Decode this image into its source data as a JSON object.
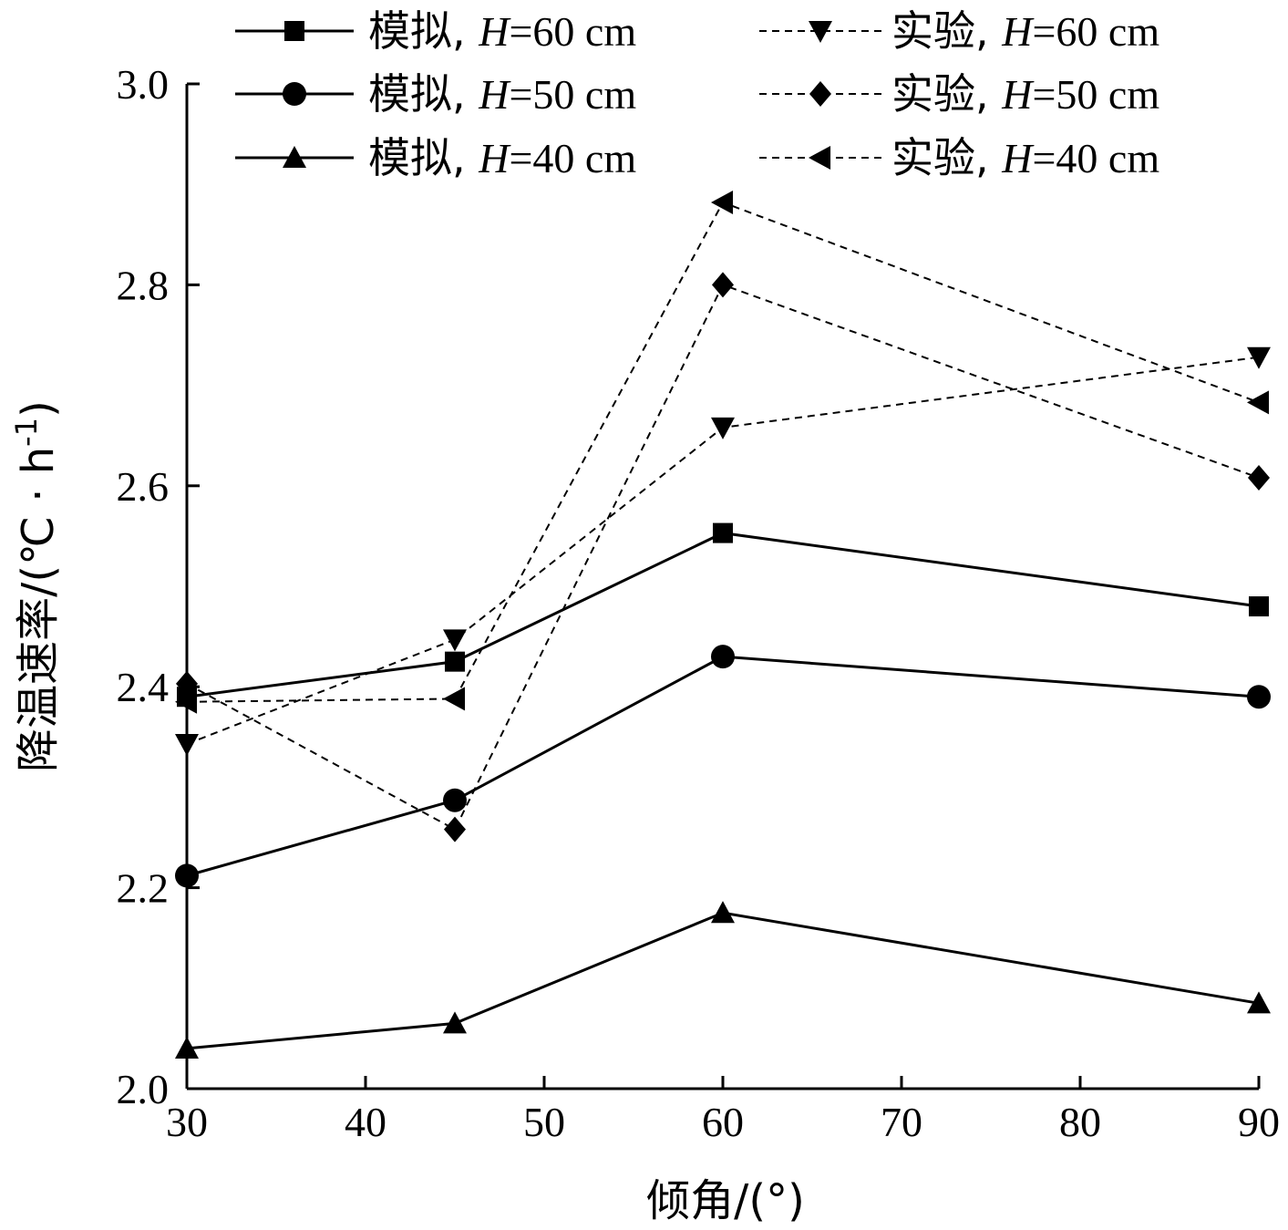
{
  "chart_data": {
    "type": "line",
    "title": "",
    "xlabel": "倾角/(°)",
    "ylabel": "降温速率/(℃ · h",
    "ylabel_sup": "-1",
    "ylabel_close": ")",
    "xlim": [
      30,
      90
    ],
    "ylim": [
      2.0,
      3.0
    ],
    "xticks": [
      30,
      40,
      50,
      60,
      70,
      80,
      90
    ],
    "yticks": [
      2.0,
      2.2,
      2.4,
      2.6,
      2.8,
      3.0
    ],
    "ytick_labels": [
      "2.0",
      "2.2",
      "2.4",
      "2.6",
      "2.8",
      "3.0"
    ],
    "x": [
      30,
      45,
      60,
      90
    ],
    "grid": false,
    "legend_position": "top",
    "series": [
      {
        "name": "模拟, H=60 cm",
        "prefix": "模拟, ",
        "var": "H",
        "suffix": "=60 cm",
        "style": "solid",
        "marker": "square",
        "values": [
          2.39,
          2.425,
          2.553,
          2.48
        ]
      },
      {
        "name": "模拟, H=50 cm",
        "prefix": "模拟, ",
        "var": "H",
        "suffix": "=50 cm",
        "style": "solid",
        "marker": "circle",
        "values": [
          2.212,
          2.287,
          2.43,
          2.39
        ]
      },
      {
        "name": "模拟, H=40 cm",
        "prefix": "模拟, ",
        "var": "H",
        "suffix": "=40 cm",
        "style": "solid",
        "marker": "triangle-up",
        "values": [
          2.04,
          2.065,
          2.175,
          2.085
        ]
      },
      {
        "name": "实验, H=60 cm",
        "prefix": "实验, ",
        "var": "H",
        "suffix": "=60 cm",
        "style": "dashed",
        "marker": "triangle-down",
        "values": [
          2.343,
          2.447,
          2.658,
          2.728
        ]
      },
      {
        "name": "实验, H=50 cm",
        "prefix": "实验, ",
        "var": "H",
        "suffix": "=50 cm",
        "style": "dashed",
        "marker": "diamond",
        "values": [
          2.403,
          2.258,
          2.8,
          2.608
        ]
      },
      {
        "name": "实验, H=40 cm",
        "prefix": "实验, ",
        "var": "H",
        "suffix": "=40 cm",
        "style": "dashed",
        "marker": "triangle-left",
        "values": [
          2.385,
          2.388,
          2.882,
          2.683
        ]
      }
    ]
  }
}
